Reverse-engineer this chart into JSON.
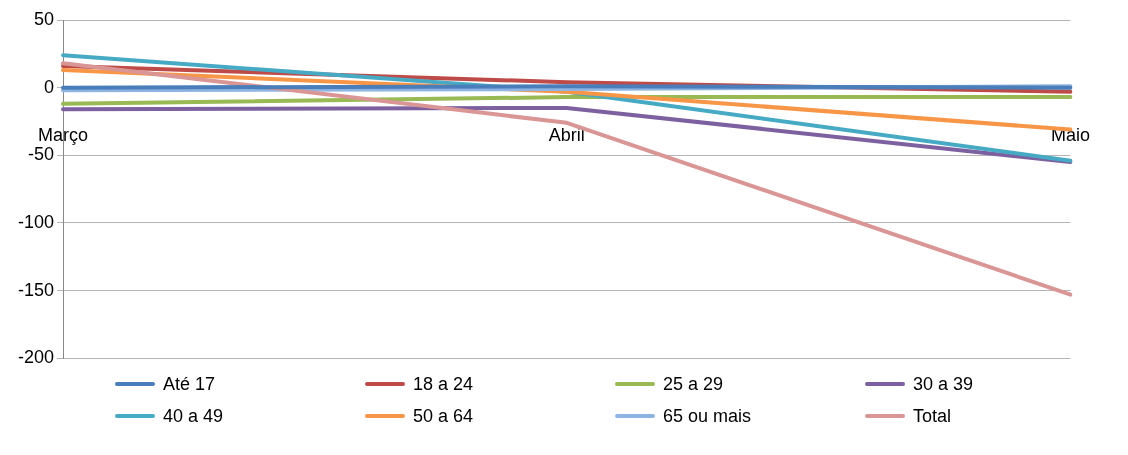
{
  "chart_data": {
    "type": "line",
    "categories": [
      "Março",
      "Abril",
      "Maio"
    ],
    "ylim": [
      -200,
      50
    ],
    "yticks": [
      -200,
      -150,
      -100,
      -50,
      0,
      50
    ],
    "grid": "y",
    "legend": "bottom",
    "marker": "none",
    "line_style": "solid",
    "series": [
      {
        "name": "Até 17",
        "color": "#4a7ebb",
        "values": [
          0,
          1,
          0
        ]
      },
      {
        "name": "18 a 24",
        "color": "#be4b48",
        "values": [
          16,
          4,
          -3
        ]
      },
      {
        "name": "25 a 29",
        "color": "#98b954",
        "values": [
          -12,
          -7,
          -7
        ]
      },
      {
        "name": "30 a 39",
        "color": "#7d60a0",
        "values": [
          -16,
          -15,
          -55
        ]
      },
      {
        "name": "40 a 49",
        "color": "#46aac5",
        "values": [
          24,
          -3,
          -54
        ]
      },
      {
        "name": "50 a 64",
        "color": "#f79646",
        "values": [
          13,
          -3,
          -31
        ]
      },
      {
        "name": "65 ou mais",
        "color": "#8eb4e3",
        "values": [
          -2,
          -1,
          1
        ]
      },
      {
        "name": "Total",
        "color": "#d99694",
        "values": [
          18,
          -26,
          -153
        ]
      }
    ]
  }
}
